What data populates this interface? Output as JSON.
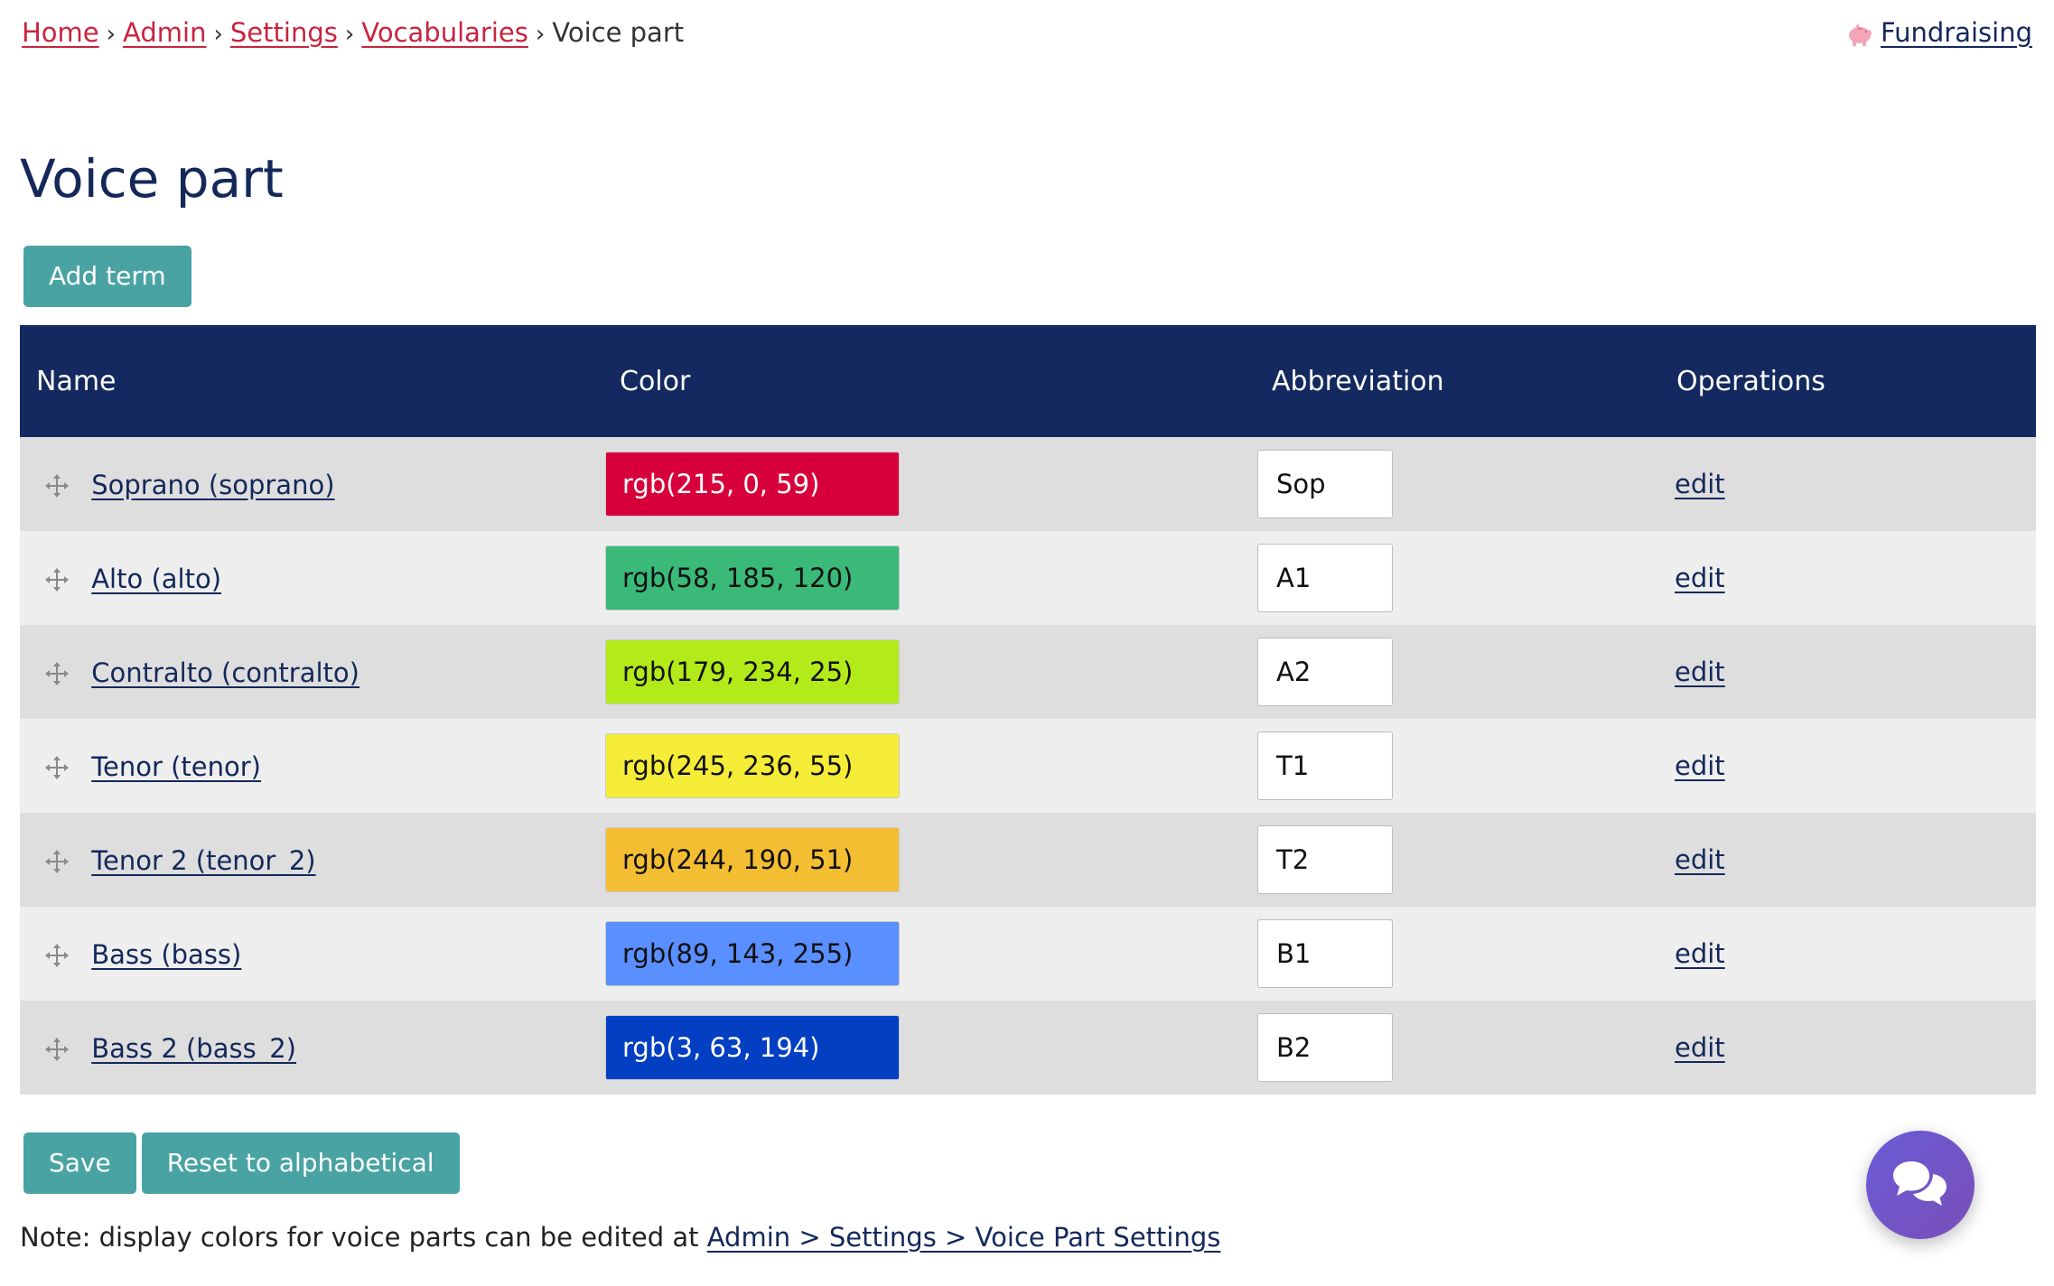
{
  "breadcrumb": {
    "items": [
      {
        "label": "Home"
      },
      {
        "label": "Admin"
      },
      {
        "label": "Settings"
      },
      {
        "label": "Vocabularies"
      }
    ],
    "separator": "›",
    "current": "Voice part"
  },
  "header": {
    "fundraising_label": "Fundraising",
    "fundraising_icon": "piggy-bank-icon"
  },
  "page": {
    "title": "Voice part",
    "add_term_label": "Add term"
  },
  "table": {
    "columns": [
      "Name",
      "Color",
      "Abbreviation",
      "Operations"
    ],
    "rows": [
      {
        "name": "Soprano (soprano)",
        "color_label": "rgb(215, 0, 59)",
        "color": "#d7003b",
        "text_color": "#ffffff",
        "abbreviation": "Sop",
        "operation": "edit"
      },
      {
        "name": "Alto (alto)",
        "color_label": "rgb(58, 185, 120)",
        "color": "#3ab978",
        "text_color": "#111111",
        "abbreviation": "A1",
        "operation": "edit"
      },
      {
        "name": "Contralto (contralto)",
        "color_label": "rgb(179, 234, 25)",
        "color": "#b3ea19",
        "text_color": "#111111",
        "abbreviation": "A2",
        "operation": "edit"
      },
      {
        "name": "Tenor (tenor)",
        "color_label": "rgb(245, 236, 55)",
        "color": "#f5ec37",
        "text_color": "#111111",
        "abbreviation": "T1",
        "operation": "edit"
      },
      {
        "name": "Tenor 2 (tenor_2)",
        "color_label": "rgb(244, 190, 51)",
        "color": "#f4be33",
        "text_color": "#111111",
        "abbreviation": "T2",
        "operation": "edit"
      },
      {
        "name": "Bass (bass)",
        "color_label": "rgb(89, 143, 255)",
        "color": "#598fff",
        "text_color": "#111111",
        "abbreviation": "B1",
        "operation": "edit"
      },
      {
        "name": "Bass 2 (bass_2)",
        "color_label": "rgb(3, 63, 194)",
        "color": "#033fc2",
        "text_color": "#ffffff",
        "abbreviation": "B2",
        "operation": "edit"
      }
    ]
  },
  "actions": {
    "save_label": "Save",
    "reset_label": "Reset to alphabetical"
  },
  "note": {
    "text": "Note: display colors for voice parts can be edited at ",
    "link_label": "Admin > Settings > Voice Part Settings"
  },
  "chat": {
    "icon": "chat-bubbles-icon"
  },
  "colors": {
    "accent_button": "#4aa3a3",
    "header_navy": "#13295f",
    "link_navy": "#14285a",
    "breadcrumb_red": "#c8243f"
  }
}
